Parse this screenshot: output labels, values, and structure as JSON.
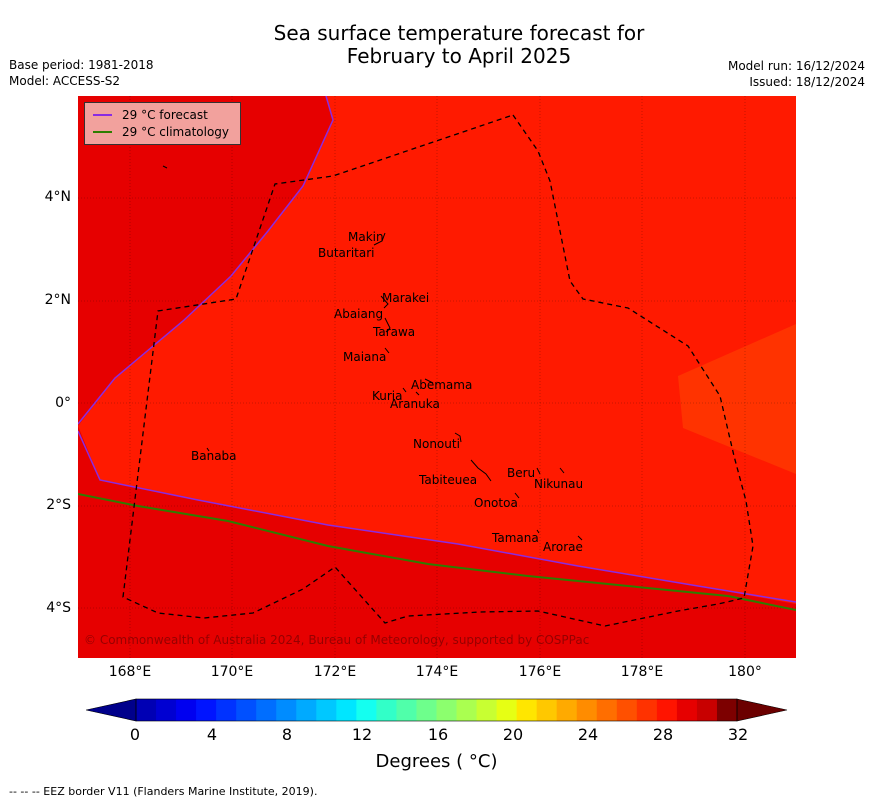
{
  "title": {
    "line1": "Sea surface temperature forecast for",
    "line2": "February to April 2025"
  },
  "meta": {
    "base_period": "Base period: 1981-2018",
    "model": "Model: ACCESS-S2",
    "model_run": "Model run: 16/12/2024",
    "issued": "Issued: 18/12/2024"
  },
  "map": {
    "background_color": "#ff1a00",
    "cool_region_color": "#e60000",
    "warm_patch_color": "#ff3300",
    "forecast_line_color": "#8a2be2",
    "climatology_line_color": "#2e7d00",
    "credit": "© Commonwealth of Australia 2024, Bureau of Meteorology, supported by COSPPac",
    "y_ticks": [
      "4°N",
      "2°N",
      "0°",
      "2°S",
      "4°S"
    ],
    "x_ticks": [
      "168°E",
      "170°E",
      "172°E",
      "174°E",
      "176°E",
      "178°E",
      "180°"
    ],
    "islands": [
      {
        "name": "Makin"
      },
      {
        "name": "Butaritari"
      },
      {
        "name": "Marakei"
      },
      {
        "name": "Abaiang"
      },
      {
        "name": "Tarawa"
      },
      {
        "name": "Maiana"
      },
      {
        "name": "Abemama"
      },
      {
        "name": "Kuria"
      },
      {
        "name": "Aranuka"
      },
      {
        "name": "Nonouti"
      },
      {
        "name": "Banaba"
      },
      {
        "name": "Tabiteuea"
      },
      {
        "name": "Beru"
      },
      {
        "name": "Nikunau"
      },
      {
        "name": "Onotoa"
      },
      {
        "name": "Tamana"
      },
      {
        "name": "Arorae"
      }
    ]
  },
  "legend": {
    "forecast_label": "29 °C  forecast",
    "climatology_label": "29 °C  climatology"
  },
  "colorbar": {
    "label": "Degrees ( °C)",
    "ticks": [
      "0",
      "4",
      "8",
      "12",
      "16",
      "20",
      "24",
      "28",
      "32"
    ],
    "under_color": "#00008b",
    "over_color": "#6b0000",
    "colors": [
      "#0000b4",
      "#0000d2",
      "#0000f0",
      "#0014ff",
      "#0032ff",
      "#0050ff",
      "#006eff",
      "#008cff",
      "#00aaff",
      "#00c8ff",
      "#00e6ff",
      "#14fff0",
      "#32ffc8",
      "#50ffaa",
      "#6eff8c",
      "#8cff6e",
      "#aaff50",
      "#c8ff32",
      "#e6ff14",
      "#ffe600",
      "#ffc800",
      "#ffaa00",
      "#ff8c00",
      "#ff6e00",
      "#ff5000",
      "#ff3200",
      "#ff1400",
      "#e60000",
      "#c80000",
      "#7d0000"
    ]
  },
  "footer": "-- -- -- EEZ border V11 (Flanders Marine Institute, 2019)."
}
